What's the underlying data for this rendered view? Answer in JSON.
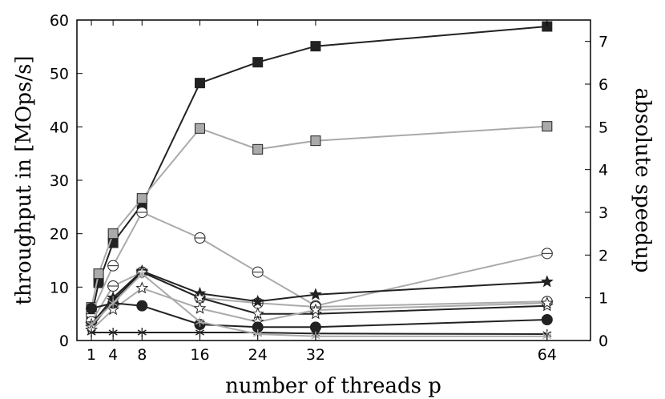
{
  "chart_data": {
    "type": "line",
    "xlabel": "number of threads p",
    "ylabel": "throughput in [MOps/s]",
    "ylabel_right": "absolute speedup",
    "xlim": [
      -1,
      70
    ],
    "ylim": [
      0,
      60
    ],
    "ylim_right": [
      0,
      7.5
    ],
    "x_ticks": [
      1,
      4,
      8,
      16,
      24,
      32,
      64
    ],
    "y_ticks": [
      0,
      10,
      20,
      30,
      40,
      50,
      60
    ],
    "y_ticks_right": [
      0,
      1,
      2,
      3,
      4,
      5,
      6,
      7
    ],
    "grid": false,
    "series": [
      {
        "marker": "square",
        "color": "#222222",
        "fill": "#222222",
        "x": [
          1,
          2,
          4,
          8,
          16,
          24,
          32,
          64
        ],
        "values": [
          4.5,
          10.8,
          18.3,
          25.5,
          48.2,
          52.1,
          55.1,
          58.8
        ]
      },
      {
        "marker": "square",
        "color": "#aaaaaa",
        "fill": "#aaaaaa",
        "x": [
          1,
          2,
          4,
          8,
          16,
          24,
          32,
          64
        ],
        "values": [
          6.2,
          12.5,
          20.0,
          26.6,
          39.7,
          35.8,
          37.4,
          40.1
        ]
      },
      {
        "marker": "circle-line",
        "color": "#aaaaaa",
        "fill": "#ffffff",
        "x": [
          1,
          4,
          8,
          16,
          24,
          32,
          64
        ],
        "values": [
          5.0,
          14.0,
          24.0,
          19.2,
          12.8,
          6.5,
          16.3
        ]
      },
      {
        "marker": "circle-line",
        "color": "#aaaaaa",
        "fill": "#ffffff",
        "x": [
          1,
          4,
          8,
          16,
          24,
          32,
          64
        ],
        "values": [
          3.5,
          10.2,
          12.8,
          8.0,
          7.0,
          6.3,
          7.3
        ]
      },
      {
        "marker": "star",
        "color": "#222222",
        "fill": "#222222",
        "x": [
          1,
          4,
          8,
          16,
          24,
          32,
          64
        ],
        "values": [
          3.0,
          8.0,
          13.0,
          8.8,
          7.3,
          8.6,
          11.0
        ]
      },
      {
        "marker": "star",
        "color": "#222222",
        "fill": "#ffffff",
        "x": [
          1,
          4,
          8,
          16,
          24,
          32,
          64
        ],
        "values": [
          2.5,
          7.5,
          12.8,
          8.0,
          5.0,
          5.0,
          6.5
        ]
      },
      {
        "marker": "star",
        "color": "#aaaaaa",
        "fill": "#ffffff",
        "x": [
          1,
          4,
          8,
          16,
          24,
          32,
          64
        ],
        "values": [
          2.0,
          5.8,
          9.8,
          6.0,
          3.5,
          5.7,
          7.0
        ]
      },
      {
        "marker": "circle",
        "color": "#222222",
        "fill": "#222222",
        "x": [
          1,
          4,
          8,
          16,
          24,
          32,
          64
        ],
        "values": [
          6.0,
          7.0,
          6.5,
          3.0,
          2.5,
          2.5,
          3.9
        ]
      },
      {
        "marker": "asterisk",
        "color": "#222222",
        "fill": "#222222",
        "x": [
          1,
          4,
          8,
          16,
          24,
          32,
          64
        ],
        "values": [
          1.5,
          1.5,
          1.5,
          1.5,
          1.5,
          1.3,
          1.2
        ]
      },
      {
        "marker": "asterisk",
        "color": "#aaaaaa",
        "fill": "#aaaaaa",
        "x": [
          1,
          4,
          8,
          16,
          24,
          32,
          64
        ],
        "values": [
          3.0,
          7.0,
          12.5,
          3.5,
          1.2,
          0.8,
          0.8
        ]
      }
    ]
  }
}
